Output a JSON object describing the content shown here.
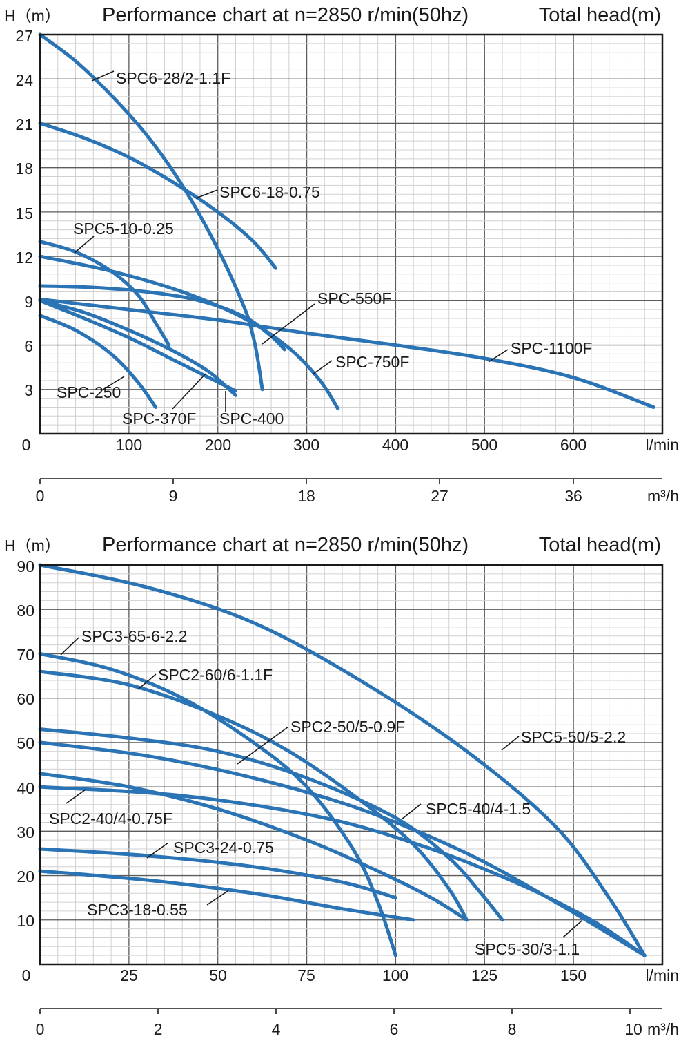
{
  "chart_data": [
    {
      "type": "line",
      "title": "Performance chart at n=2850 r/min(50hz)",
      "head_label": "H（m）",
      "right_title": "Total head(m)",
      "x_unit": "l/min",
      "x2_unit": "m³/h",
      "zero_label": "0",
      "xlim": [
        0,
        700
      ],
      "ylim": [
        0,
        27
      ],
      "y_ticks": [
        "3",
        "6",
        "9",
        "12",
        "15",
        "18",
        "21",
        "24",
        "27"
      ],
      "x_ticks": [
        "100",
        "200",
        "300",
        "400",
        "500",
        "600"
      ],
      "x2_ticks": [
        "0",
        "9",
        "18",
        "27",
        "36"
      ],
      "grid": true,
      "color": "#2a73b4",
      "series": [
        {
          "name": "SPC6-28/2-1.1F",
          "points": [
            [
              0,
              27
            ],
            [
              40,
              25.2
            ],
            [
              80,
              22.9
            ],
            [
              120,
              20.2
            ],
            [
              160,
              16.8
            ],
            [
              200,
              12.5
            ],
            [
              230,
              8.5
            ],
            [
              240,
              6.5
            ],
            [
              245,
              5
            ],
            [
              250,
              3
            ]
          ]
        },
        {
          "name": "SPC6-18-0.75",
          "points": [
            [
              0,
              21
            ],
            [
              50,
              20
            ],
            [
              100,
              18.7
            ],
            [
              150,
              17
            ],
            [
              200,
              15
            ],
            [
              240,
              13
            ],
            [
              265,
              11.2
            ]
          ]
        },
        {
          "name": "SPC5-10-0.25",
          "points": [
            [
              0,
              13
            ],
            [
              40,
              12.3
            ],
            [
              80,
              11
            ],
            [
              110,
              9.4
            ],
            [
              130,
              7.5
            ],
            [
              145,
              6
            ]
          ]
        },
        {
          "name": "SPC-550F",
          "points": [
            [
              0,
              10
            ],
            [
              60,
              9.9
            ],
            [
              120,
              9.6
            ],
            [
              180,
              9
            ],
            [
              230,
              7.9
            ],
            [
              260,
              6.6
            ],
            [
              275,
              5.7
            ]
          ]
        },
        {
          "name": "SPC-750F",
          "points": [
            [
              0,
              12
            ],
            [
              80,
              11
            ],
            [
              160,
              9.6
            ],
            [
              230,
              7.8
            ],
            [
              280,
              5.8
            ],
            [
              315,
              3.6
            ],
            [
              335,
              1.7
            ]
          ]
        },
        {
          "name": "SPC-1100F",
          "points": [
            [
              0,
              9.1
            ],
            [
              100,
              8.4
            ],
            [
              200,
              7.7
            ],
            [
              300,
              6.8
            ],
            [
              400,
              6
            ],
            [
              500,
              5.1
            ],
            [
              600,
              3.8
            ],
            [
              690,
              1.8
            ]
          ]
        },
        {
          "name": "SPC-400",
          "points": [
            [
              0,
              9
            ],
            [
              50,
              8.2
            ],
            [
              100,
              7
            ],
            [
              150,
              5.6
            ],
            [
              190,
              4.2
            ],
            [
              220,
              2.6
            ]
          ]
        },
        {
          "name": "SPC-370F",
          "points": [
            [
              0,
              9
            ],
            [
              50,
              7.8
            ],
            [
              100,
              6.5
            ],
            [
              150,
              5
            ],
            [
              190,
              3.8
            ],
            [
              220,
              2.9
            ]
          ]
        },
        {
          "name": "SPC-250",
          "points": [
            [
              0,
              8
            ],
            [
              40,
              7
            ],
            [
              80,
              5.4
            ],
            [
              110,
              3.5
            ],
            [
              130,
              1.8
            ]
          ]
        }
      ],
      "labels": [
        "SPC6-28/2-1.1F",
        "SPC6-18-0.75",
        "SPC5-10-0.25",
        "SPC-550F",
        "SPC-750F",
        "SPC-1100F",
        "SPC-250",
        "SPC-370F",
        "SPC-400"
      ]
    },
    {
      "type": "line",
      "title": "Performance chart at n=2850 r/min(50hz)",
      "head_label": "H（m）",
      "right_title": "Total head(m)",
      "x_unit": "l/min",
      "x2_unit": "m³/h",
      "zero_label": "0",
      "xlim": [
        0,
        175
      ],
      "ylim": [
        0,
        90
      ],
      "y_ticks": [
        "10",
        "20",
        "30",
        "40",
        "50",
        "60",
        "70",
        "80",
        "90"
      ],
      "x_ticks": [
        "25",
        "50",
        "75",
        "100",
        "125",
        "150"
      ],
      "x2_ticks": [
        "0",
        "2",
        "4",
        "6",
        "8",
        "10"
      ],
      "grid": true,
      "color": "#2a73b4",
      "series": [
        {
          "name": "SPC5-50/5-2.2",
          "points": [
            [
              0,
              90
            ],
            [
              30,
              85
            ],
            [
              60,
              77
            ],
            [
              90,
              64
            ],
            [
              120,
              48
            ],
            [
              145,
              31
            ],
            [
              160,
              15
            ],
            [
              170,
              2
            ]
          ]
        },
        {
          "name": "SPC3-65-6-2.2",
          "points": [
            [
              0,
              70
            ],
            [
              20,
              66.5
            ],
            [
              40,
              60
            ],
            [
              60,
              50
            ],
            [
              75,
              40
            ],
            [
              88,
              26
            ],
            [
              95,
              14
            ],
            [
              100,
              2
            ]
          ]
        },
        {
          "name": "SPC2-60/6-1.1F",
          "points": [
            [
              0,
              66
            ],
            [
              25,
              63
            ],
            [
              50,
              56
            ],
            [
              70,
              48
            ],
            [
              90,
              37
            ],
            [
              105,
              27
            ],
            [
              115,
              17
            ],
            [
              120,
              10
            ]
          ]
        },
        {
          "name": "SPC2-50/5-0.9F",
          "points": [
            [
              0,
              53
            ],
            [
              25,
              51
            ],
            [
              50,
              48
            ],
            [
              75,
              42
            ],
            [
              100,
              33
            ],
            [
              115,
              24
            ],
            [
              124,
              16
            ],
            [
              130,
              10
            ]
          ]
        },
        {
          "name": "SPC5-40/4-1.5",
          "points": [
            [
              0,
              50
            ],
            [
              30,
              47
            ],
            [
              60,
              42
            ],
            [
              90,
              35
            ],
            [
              120,
              25
            ],
            [
              145,
              14
            ],
            [
              170,
              2
            ]
          ]
        },
        {
          "name": "SPC5-30/3-1.1",
          "points": [
            [
              0,
              40
            ],
            [
              40,
              38
            ],
            [
              80,
              33
            ],
            [
              110,
              26
            ],
            [
              135,
              18
            ],
            [
              155,
              10
            ],
            [
              170,
              2
            ]
          ]
        },
        {
          "name": "SPC2-40/4-0.75F",
          "points": [
            [
              0,
              43
            ],
            [
              25,
              40
            ],
            [
              50,
              35
            ],
            [
              75,
              28
            ],
            [
              95,
              21
            ],
            [
              110,
              15
            ],
            [
              120,
              10
            ]
          ]
        },
        {
          "name": "SPC3-24-0.75",
          "points": [
            [
              0,
              26
            ],
            [
              30,
              24.5
            ],
            [
              60,
              22
            ],
            [
              85,
              18.5
            ],
            [
              100,
              15
            ]
          ]
        },
        {
          "name": "SPC3-18-0.55",
          "points": [
            [
              0,
              21
            ],
            [
              30,
              19
            ],
            [
              60,
              16
            ],
            [
              85,
              12.5
            ],
            [
              105,
              10
            ]
          ]
        }
      ],
      "labels": [
        "SPC5-50/5-2.2",
        "SPC3-65-6-2.2",
        "SPC2-60/6-1.1F",
        "SPC2-50/5-0.9F",
        "SPC5-40/4-1.5",
        "SPC2-40/4-0.75F",
        "SPC3-24-0.75",
        "SPC3-18-0.55",
        "SPC5-30/3-1.1"
      ]
    }
  ]
}
